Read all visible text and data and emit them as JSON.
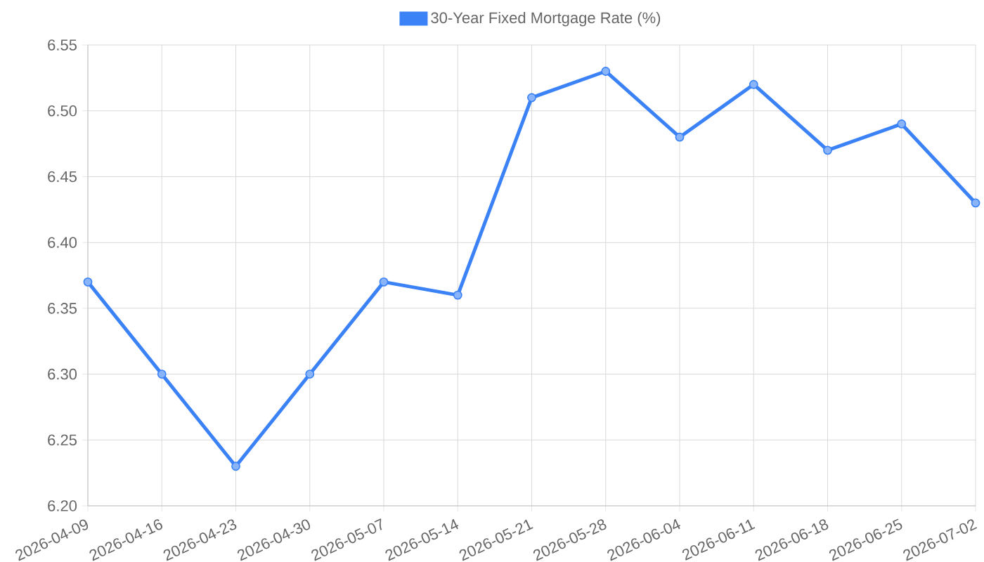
{
  "chart_data": {
    "type": "line",
    "categories": [
      "2026-04-09",
      "2026-04-16",
      "2026-04-23",
      "2026-04-30",
      "2026-05-07",
      "2026-05-14",
      "2026-05-21",
      "2026-05-28",
      "2026-06-04",
      "2026-06-11",
      "2026-06-18",
      "2026-06-25",
      "2026-07-02"
    ],
    "series": [
      {
        "name": "30-Year Fixed Mortgage Rate (%)",
        "color": "#3b82f6",
        "values": [
          6.37,
          6.3,
          6.23,
          6.3,
          6.37,
          6.36,
          6.51,
          6.53,
          6.48,
          6.52,
          6.47,
          6.49,
          6.43
        ]
      }
    ],
    "ylim": [
      6.2,
      6.55
    ],
    "yticks": [
      {
        "value": 6.2,
        "label": "6.20"
      },
      {
        "value": 6.25,
        "label": "6.25"
      },
      {
        "value": 6.3,
        "label": "6.30"
      },
      {
        "value": 6.35,
        "label": "6.35"
      },
      {
        "value": 6.4,
        "label": "6.40"
      },
      {
        "value": 6.45,
        "label": "6.45"
      },
      {
        "value": 6.5,
        "label": "6.50"
      },
      {
        "value": 6.55,
        "label": "6.55"
      }
    ],
    "grid": true,
    "legend": "top",
    "marker": "circle",
    "line_style": "solid"
  }
}
